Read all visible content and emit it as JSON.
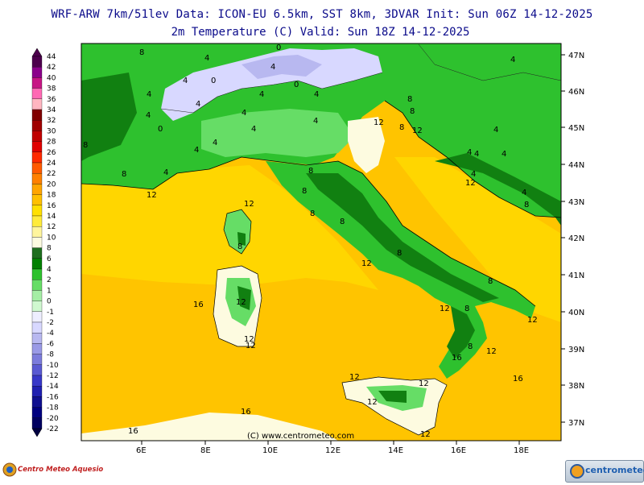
{
  "header": {
    "line1": "WRF-ARW 7km/51lev  Data: ICON-EU 6.5km, SST 8km, 3DVAR  Init: Sun 06Z 14-12-2025",
    "line2": "2m Temperature (C)  Valid: Sun 18Z 14-12-2025"
  },
  "legend": {
    "levels": [
      "44",
      "42",
      "40",
      "38",
      "36",
      "34",
      "32",
      "30",
      "28",
      "26",
      "24",
      "22",
      "20",
      "18",
      "16",
      "14",
      "12",
      "10",
      "8",
      "6",
      "4",
      "2",
      "1",
      "0",
      "-1",
      "-2",
      "-4",
      "-6",
      "-8",
      "-10",
      "-12",
      "-14",
      "-16",
      "-18",
      "-20",
      "-22"
    ],
    "colors": [
      "#4d004d",
      "#8b008b",
      "#c71585",
      "#ff69b4",
      "#ffb6c1",
      "#800000",
      "#a00000",
      "#c00000",
      "#e00000",
      "#ff2a00",
      "#ff5a00",
      "#ff8000",
      "#ffa500",
      "#ffc000",
      "#ffe000",
      "#ffeb3b",
      "#fff59d",
      "#fdfbe0",
      "#1e6e1e",
      "#008000",
      "#2ec12e",
      "#66dd66",
      "#a5eea5",
      "#d0f8d0",
      "#eeeeff",
      "#d8d8ff",
      "#b8b8f0",
      "#9a9ae6",
      "#7c7cdc",
      "#5a5ad2",
      "#3838c8",
      "#2020b0",
      "#101090",
      "#000080",
      "#000060",
      "#000040"
    ]
  },
  "axes": {
    "latitudes": [
      "47N",
      "46N",
      "45N",
      "44N",
      "43N",
      "42N",
      "41N",
      "40N",
      "39N",
      "38N",
      "37N"
    ],
    "longitudes": [
      "6E",
      "8E",
      "10E",
      "12E",
      "14E",
      "16E",
      "18E"
    ]
  },
  "contour_labels": [
    "8",
    "4",
    "0",
    "4",
    "4",
    "0",
    "0",
    "4",
    "4",
    "4",
    "4",
    "8",
    "4",
    "4",
    "8",
    "4",
    "0",
    "4",
    "4",
    "4",
    "4",
    "8",
    "12",
    "8",
    "12",
    "4",
    "4",
    "4",
    "4",
    "8",
    "4",
    "4",
    "12",
    "8",
    "8",
    "4",
    "8",
    "12",
    "8",
    "8",
    "8",
    "8",
    "8",
    "12",
    "12",
    "8",
    "12",
    "12",
    "12",
    "8",
    "12",
    "12",
    "16",
    "16",
    "16",
    "12",
    "12",
    "16",
    "12",
    "12",
    "12",
    "16"
  ],
  "credits": {
    "watermark": "(C) www.centrometeo.com",
    "logo_left": "Centro Meteo Aquesio",
    "logo_right": "centrometeo"
  },
  "colors": {
    "sea_warm": "#ffc400",
    "sea_mid": "#ffd400",
    "land_green": "#2ec12e",
    "land_dark": "#118011",
    "land_light": "#66dd66",
    "cold": "#d8d8ff",
    "header_text": "#0a0a8a"
  }
}
